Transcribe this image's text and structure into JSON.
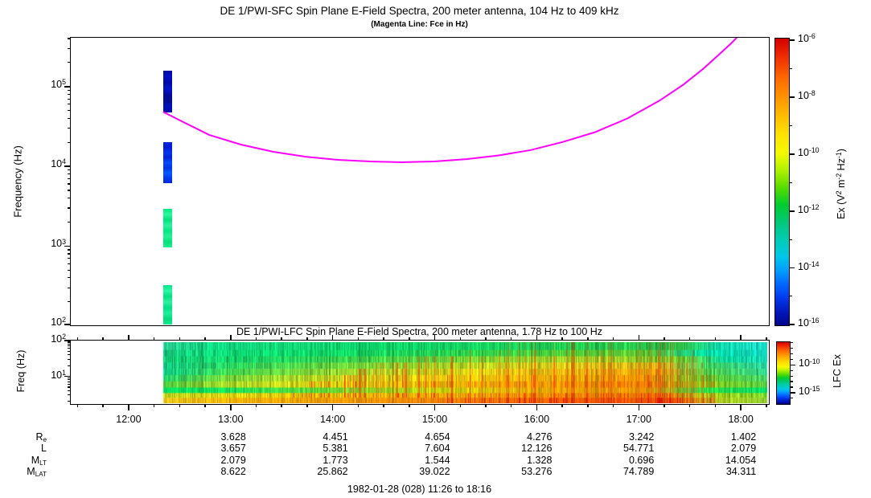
{
  "footer": "1982-01-28 (028) 11:26 to 18:16",
  "xaxis": {
    "start_label": "11:26",
    "end_label": "18:16",
    "start_min": 686,
    "end_min": 1096,
    "minor_step_min": 15,
    "hours": [
      {
        "min": 720,
        "label": "12:00"
      },
      {
        "min": 780,
        "label": "13:00"
      },
      {
        "min": 840,
        "label": "14:00"
      },
      {
        "min": 900,
        "label": "15:00"
      },
      {
        "min": 960,
        "label": "16:00"
      },
      {
        "min": 1020,
        "label": "17:00"
      },
      {
        "min": 1080,
        "label": "18:00"
      }
    ]
  },
  "ephemeris": {
    "rows": [
      {
        "base": "R",
        "sub": "e",
        "values": [
          "3.628",
          "4.451",
          "4.654",
          "4.276",
          "3.242",
          "1.402"
        ]
      },
      {
        "base": "L",
        "sub": "",
        "values": [
          "3.657",
          "5.381",
          "7.604",
          "12.126",
          "54.771",
          "2.079"
        ]
      },
      {
        "base": "M",
        "sub": "LT",
        "values": [
          "2.079",
          "1.773",
          "1.544",
          "1.328",
          "0.696",
          "14.054"
        ]
      },
      {
        "base": "M",
        "sub": "LAT",
        "values": [
          "8.622",
          "25.862",
          "39.022",
          "53.276",
          "74.789",
          "34.311"
        ]
      }
    ]
  },
  "chart_data": [
    {
      "type": "heatmap",
      "instrument": "SFC",
      "title": "DE 1/PWI-SFC  Spin Plane E-Field Spectra, 200 meter antenna, 104 Hz to 409 kHz",
      "subtitle": "(Magenta Line: Fce in Hz)",
      "ylabel": "Frequency (Hz)",
      "ylim_hz": [
        104,
        409000
      ],
      "ytick_exps": [
        2,
        3,
        4,
        5
      ],
      "fce_line": {
        "name": "Fce",
        "color": "#ff00ff",
        "points_frac_hz": [
          [
            0.1326,
            48000
          ],
          [
            0.1638,
            35000
          ],
          [
            0.1984,
            24800
          ],
          [
            0.2445,
            18700
          ],
          [
            0.2907,
            15200
          ],
          [
            0.3368,
            13200
          ],
          [
            0.3829,
            12050
          ],
          [
            0.4291,
            11500
          ],
          [
            0.4752,
            11240
          ],
          [
            0.5213,
            11500
          ],
          [
            0.5675,
            12300
          ],
          [
            0.6136,
            13700
          ],
          [
            0.6597,
            16000
          ],
          [
            0.7059,
            20200
          ],
          [
            0.752,
            26800
          ],
          [
            0.7982,
            39800
          ],
          [
            0.8443,
            66500
          ],
          [
            0.8789,
            106000
          ],
          [
            0.9077,
            169000
          ],
          [
            0.9308,
            257000
          ],
          [
            0.9481,
            355000
          ],
          [
            0.9573,
            430000
          ]
        ]
      },
      "bars": [
        {
          "t0": 0.1326,
          "t1": 0.1453,
          "f_hi": 158000,
          "f_lo": 47400,
          "stripes": [
            "#000a9c",
            "#0010c4",
            "#0008a4",
            "#0016c8",
            "#000a9c",
            "#000c90",
            "#0012bc",
            "#0008a4"
          ]
        },
        {
          "t0": 0.1326,
          "t1": 0.1453,
          "f_hi": 20100,
          "f_lo": 6150,
          "stripes": [
            "#0026e0",
            "#001cd0",
            "#0034f0",
            "#0024da",
            "#004cff",
            "#0032e6",
            "#005cff",
            "#003af0",
            "#002ada"
          ]
        },
        {
          "t0": 0.1326,
          "t1": 0.1453,
          "f_hi": 2930,
          "f_lo": 964,
          "stripes": [
            "#00e882",
            "#2cf89e",
            "#00e27c",
            "#30f0a0",
            "#00e882",
            "#28f096",
            "#00e27c",
            "#20ee92"
          ]
        },
        {
          "t0": 0.1326,
          "t1": 0.1453,
          "f_hi": 324,
          "f_lo": 104,
          "stripes": [
            "#00e888",
            "#2cf8a4",
            "#00e27e",
            "#30f0a2",
            "#00e084",
            "#20f098",
            "#00dc7c",
            "#18e890"
          ]
        }
      ],
      "colorbar": {
        "label_parts": [
          {
            "t": "Ex (V"
          },
          {
            "s": "2"
          },
          {
            "t": " m"
          },
          {
            "s": "-2"
          },
          {
            "t": " Hz"
          },
          {
            "s": "-1"
          },
          {
            "t": ")"
          }
        ],
        "ticks": [
          {
            "exp": -6,
            "pos": 0.008
          },
          {
            "exp": -8,
            "pos": 0.207
          },
          {
            "exp": -10,
            "pos": 0.406
          },
          {
            "exp": -12,
            "pos": 0.605
          },
          {
            "exp": -14,
            "pos": 0.803
          },
          {
            "exp": -16,
            "pos": 1.0
          }
        ],
        "gradient": [
          [
            0,
            "#d40000"
          ],
          [
            6,
            "#ee2a00"
          ],
          [
            14,
            "#ff6a00"
          ],
          [
            24,
            "#ffaa00"
          ],
          [
            33,
            "#ffe000"
          ],
          [
            40,
            "#f4fa00"
          ],
          [
            46,
            "#b0f000"
          ],
          [
            52,
            "#58dc00"
          ],
          [
            58,
            "#00cc30"
          ],
          [
            64,
            "#00c878"
          ],
          [
            70,
            "#00ccb4"
          ],
          [
            76,
            "#00c8e8"
          ],
          [
            81,
            "#009cff"
          ],
          [
            86,
            "#0064ff"
          ],
          [
            91,
            "#0034e8"
          ],
          [
            96,
            "#0014b4"
          ],
          [
            100,
            "#000688"
          ]
        ]
      }
    },
    {
      "type": "heatmap",
      "instrument": "LFC",
      "title": "DE 1/PWI-LFC  Spin Plane E-Field Spectra, 200 meter antenna, 1.78 Hz to 100 Hz",
      "ylabel": "Freq (Hz)",
      "ylim_hz": [
        1.78,
        100
      ],
      "ytick_exps": [
        1,
        2
      ],
      "data_start_frac": 0.1326,
      "bands": [
        {
          "h": 10,
          "noise": 0.22,
          "streak": [
            0.55,
            0.9,
            "#cc4400",
            0.07
          ],
          "stops": [
            [
              0,
              "#2ad696"
            ],
            [
              0.08,
              "#10d882"
            ],
            [
              0.2,
              "#14d878"
            ],
            [
              0.35,
              "#0cd86c"
            ],
            [
              0.5,
              "#16d464"
            ],
            [
              0.62,
              "#1ecf56"
            ],
            [
              0.75,
              "#28c84e"
            ],
            [
              0.86,
              "#30c44a"
            ],
            [
              0.92,
              "#10d4a8"
            ],
            [
              1,
              "#1adcca"
            ]
          ]
        },
        {
          "h": 8,
          "noise": 0.24,
          "streak": [
            0.5,
            0.9,
            "#dd5500",
            0.09
          ],
          "stops": [
            [
              0,
              "#18d284"
            ],
            [
              0.12,
              "#0ed874"
            ],
            [
              0.3,
              "#12d866"
            ],
            [
              0.5,
              "#2ed24e"
            ],
            [
              0.66,
              "#4ecc3a"
            ],
            [
              0.8,
              "#62c832"
            ],
            [
              0.9,
              "#00d8a4"
            ],
            [
              1,
              "#14dcc2"
            ]
          ]
        },
        {
          "h": 8,
          "noise": 0.26,
          "streak": [
            0.42,
            0.9,
            "#ee4400",
            0.11
          ],
          "stops": [
            [
              0,
              "#12d07a"
            ],
            [
              0.15,
              "#18d666"
            ],
            [
              0.35,
              "#44d44a"
            ],
            [
              0.55,
              "#86d230"
            ],
            [
              0.72,
              "#a8cc24"
            ],
            [
              0.86,
              "#74cc2e"
            ],
            [
              0.93,
              "#08d49c"
            ],
            [
              1,
              "#16d8b4"
            ]
          ]
        },
        {
          "h": 8,
          "noise": 0.27,
          "streak": [
            0.35,
            0.9,
            "#ff3300",
            0.12
          ],
          "stops": [
            [
              0,
              "#14cc84"
            ],
            [
              0.12,
              "#2cd45e"
            ],
            [
              0.3,
              "#6ed63c"
            ],
            [
              0.5,
              "#b4d622"
            ],
            [
              0.68,
              "#d8c418"
            ],
            [
              0.82,
              "#e0b414"
            ],
            [
              0.9,
              "#3ecc5c"
            ],
            [
              1,
              "#28d49e"
            ]
          ]
        },
        {
          "h": 8,
          "noise": 0.27,
          "streak": [
            0.32,
            0.9,
            "#ff3300",
            0.14
          ],
          "stops": [
            [
              0,
              "#0ed288"
            ],
            [
              0.12,
              "#46d84e"
            ],
            [
              0.3,
              "#9cd830"
            ],
            [
              0.5,
              "#dcd214"
            ],
            [
              0.68,
              "#ecb00e"
            ],
            [
              0.82,
              "#f0a00a"
            ],
            [
              0.9,
              "#50cc48"
            ],
            [
              1,
              "#30d28c"
            ]
          ]
        },
        {
          "h": 8,
          "noise": 0.26,
          "streak": [
            0.28,
            0.92,
            "#ff2200",
            0.16
          ],
          "stops": [
            [
              0,
              "#20d26c"
            ],
            [
              0.1,
              "#74d63c"
            ],
            [
              0.26,
              "#bcd822"
            ],
            [
              0.44,
              "#e8cc0c"
            ],
            [
              0.62,
              "#f4ae04"
            ],
            [
              0.8,
              "#f49600"
            ],
            [
              0.9,
              "#5ecc30"
            ],
            [
              1,
              "#46cc64"
            ]
          ]
        },
        {
          "h": 8,
          "noise": 0.25,
          "streak": [
            0.24,
            0.92,
            "#ff2200",
            0.18
          ],
          "stops": [
            [
              0,
              "#50d442"
            ],
            [
              0.1,
              "#a6d82a"
            ],
            [
              0.26,
              "#dcd612"
            ],
            [
              0.44,
              "#f0bc04"
            ],
            [
              0.62,
              "#f49a00"
            ],
            [
              0.8,
              "#f58200"
            ],
            [
              0.9,
              "#86cc1c"
            ],
            [
              1,
              "#58cc42"
            ]
          ]
        },
        {
          "h": 7,
          "noise": 0.2,
          "streak": [
            0.3,
            0.9,
            "#ff3300",
            0.12
          ],
          "stops": [
            [
              0,
              "#04e464"
            ],
            [
              0.1,
              "#16e05c"
            ],
            [
              0.28,
              "#6cda32"
            ],
            [
              0.46,
              "#ccd40a"
            ],
            [
              0.64,
              "#eca800"
            ],
            [
              0.8,
              "#f09600"
            ],
            [
              0.9,
              "#2cda48"
            ],
            [
              1,
              "#04e068"
            ]
          ]
        },
        {
          "h": 6,
          "noise": 0.24,
          "streak": [
            0.2,
            0.92,
            "#ee1100",
            0.2
          ],
          "stops": [
            [
              0,
              "#c0da1e"
            ],
            [
              0.12,
              "#e4d40c"
            ],
            [
              0.3,
              "#f2c402"
            ],
            [
              0.48,
              "#f4a800"
            ],
            [
              0.66,
              "#f58800"
            ],
            [
              0.82,
              "#f57400"
            ],
            [
              0.9,
              "#a6d214"
            ],
            [
              1,
              "#7cd22c"
            ]
          ]
        },
        {
          "h": 7,
          "noise": 0.2,
          "streak": [
            0.45,
            0.92,
            "#dd0000",
            0.25
          ],
          "stops": [
            [
              0,
              "#eec61c"
            ],
            [
              0.12,
              "#f4b202"
            ],
            [
              0.3,
              "#f59c00"
            ],
            [
              0.5,
              "#f57c00"
            ],
            [
              0.7,
              "#f65a00"
            ],
            [
              0.85,
              "#ec5a00"
            ],
            [
              0.92,
              "#b0cc1e"
            ],
            [
              1,
              "#8ecc30"
            ]
          ]
        }
      ],
      "colorbar": {
        "label": "LFC Ex",
        "ticks": [
          {
            "exp": -10,
            "pos": 0.38
          },
          {
            "exp": -15,
            "pos": 0.83
          }
        ],
        "minor_pos": [
          0.02,
          0.11,
          0.2,
          0.29,
          0.47,
          0.56,
          0.65,
          0.74,
          0.92
        ]
      }
    }
  ]
}
